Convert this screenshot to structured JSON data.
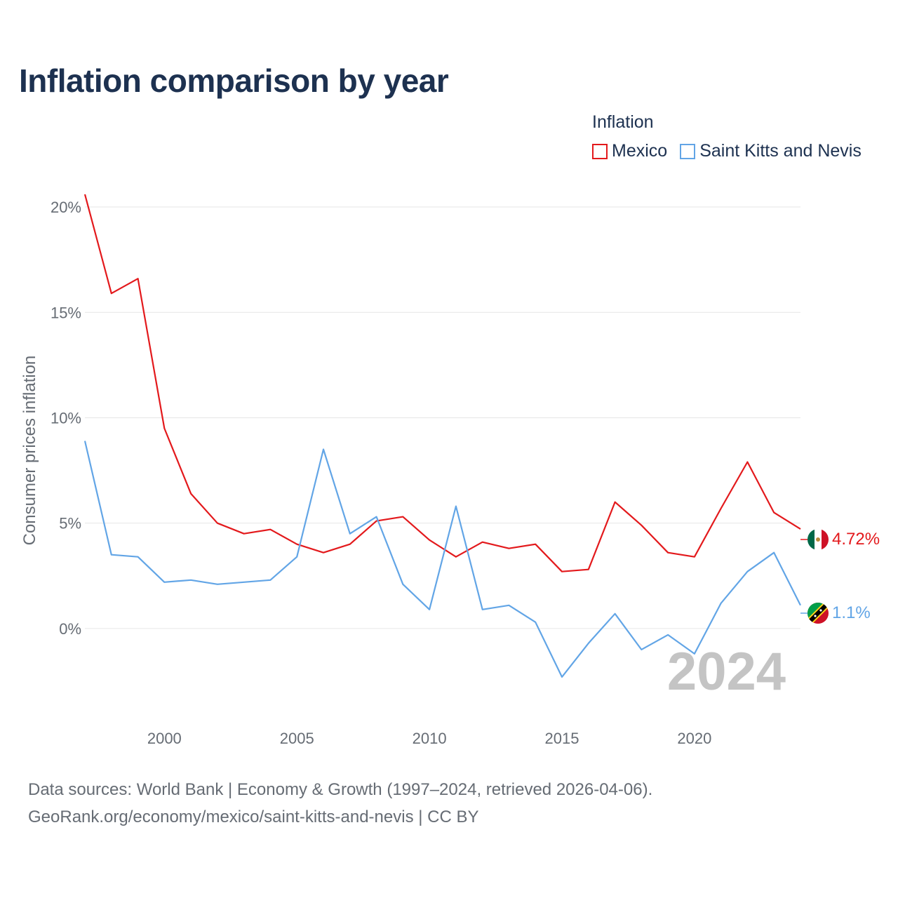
{
  "title": "Inflation comparison by year",
  "legend": {
    "title": "Inflation"
  },
  "footer": {
    "line1": "Data sources: World Bank | Economy & Growth (1997–2024, retrieved 2026-04-06).",
    "line2": "GeoRank.org/economy/mexico/saint-kitts-and-nevis | CC BY"
  },
  "chart_data": {
    "type": "line",
    "title": "Inflation comparison by year",
    "xlabel": "",
    "ylabel": "Consumer prices inflation",
    "x": [
      1997,
      1998,
      1999,
      2000,
      2001,
      2002,
      2003,
      2004,
      2005,
      2006,
      2007,
      2008,
      2009,
      2010,
      2011,
      2012,
      2013,
      2014,
      2015,
      2016,
      2017,
      2018,
      2019,
      2020,
      2021,
      2022,
      2023,
      2024
    ],
    "xlim": [
      1997,
      2024
    ],
    "ylim": [
      -3.8,
      21.5
    ],
    "xticks": [
      {
        "value": 2000,
        "label": "2000"
      },
      {
        "value": 2005,
        "label": "2005"
      },
      {
        "value": 2010,
        "label": "2010"
      },
      {
        "value": 2015,
        "label": "2015"
      },
      {
        "value": 2020,
        "label": "2020"
      }
    ],
    "yticks": [
      {
        "value": 0,
        "label": "0%"
      },
      {
        "value": 5,
        "label": "5%"
      },
      {
        "value": 10,
        "label": "10%"
      },
      {
        "value": 15,
        "label": "15%"
      },
      {
        "value": 20,
        "label": "20%"
      }
    ],
    "grid": true,
    "legend_position": "top-right",
    "watermark_year": "2024",
    "series": [
      {
        "name": "Mexico",
        "color": "#e3191c",
        "end_label": "4.72%",
        "flag_icon": "mexico-flag-icon",
        "values": [
          20.6,
          15.9,
          16.6,
          9.5,
          6.4,
          5.0,
          4.5,
          4.7,
          4.0,
          3.6,
          4.0,
          5.1,
          5.3,
          4.2,
          3.4,
          4.1,
          3.8,
          4.0,
          2.7,
          2.8,
          6.0,
          4.9,
          3.6,
          3.4,
          5.7,
          7.9,
          5.5,
          4.72
        ]
      },
      {
        "name": "Saint Kitts and Nevis",
        "color": "#62a5e6",
        "end_label": "1.1%",
        "flag_icon": "saint-kitts-and-nevis-flag-icon",
        "values": [
          8.9,
          3.5,
          3.4,
          2.2,
          2.3,
          2.1,
          2.2,
          2.3,
          3.4,
          8.5,
          4.5,
          5.3,
          2.1,
          0.9,
          5.8,
          0.9,
          1.1,
          0.3,
          -2.3,
          -0.7,
          0.7,
          -1.0,
          -0.3,
          -1.2,
          1.2,
          2.7,
          3.6,
          1.1
        ]
      }
    ]
  }
}
